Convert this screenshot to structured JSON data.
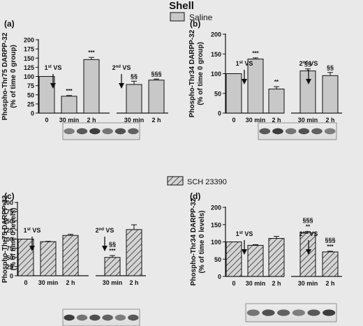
{
  "figure": {
    "title": "Shell",
    "legend_saline": "Saline",
    "legend_sch": "SCH 23390"
  },
  "chart_data": [
    {
      "id": "a",
      "panel_label": "(a)",
      "type": "bar",
      "treatment": "Saline",
      "ylabel_lines": [
        "Phospho-Thr75 DARPP-32",
        "(% of time 0 group)"
      ],
      "ylim": [
        0,
        200
      ],
      "yticks": [
        0,
        25,
        50,
        75,
        100,
        125,
        150,
        175,
        200
      ],
      "categories": [
        "0",
        "30 min",
        "2 h",
        "30 min",
        "2 h"
      ],
      "values": [
        100,
        46,
        146,
        78,
        90
      ],
      "errors": [
        0,
        2,
        6,
        9,
        3
      ],
      "marks": [
        [],
        [
          "***"
        ],
        [
          "***"
        ],
        [
          "§§"
        ],
        [
          "§§§"
        ]
      ],
      "annotations": [
        {
          "before_bar": 1,
          "ordinal": "1",
          "sup": "st",
          "label": "VS"
        },
        {
          "before_bar": 3,
          "ordinal": "2",
          "sup": "nd",
          "label": "VS"
        }
      ],
      "grid": false,
      "pattern": "solid"
    },
    {
      "id": "b",
      "panel_label": "(b)",
      "type": "bar",
      "treatment": "Saline",
      "ylabel_lines": [
        "Phospho-Thr34 DARPP-32",
        "(% of time 0 group)"
      ],
      "ylim": [
        0,
        200
      ],
      "yticks": [
        0,
        50,
        100,
        150,
        200
      ],
      "categories": [
        "0",
        "30 min",
        "2 h",
        "30 min",
        "2 h"
      ],
      "values": [
        100,
        137,
        61,
        107,
        95
      ],
      "errors": [
        0,
        3,
        6,
        5,
        8
      ],
      "marks": [
        [],
        [
          "***"
        ],
        [
          "**"
        ],
        [
          "§§"
        ],
        [
          "§§"
        ]
      ],
      "annotations": [
        {
          "before_bar": 1,
          "ordinal": "1",
          "sup": "st",
          "label": "VS"
        },
        {
          "before_bar": 3,
          "ordinal": "2",
          "sup": "nd",
          "label": "VS"
        }
      ],
      "grid": false,
      "pattern": "solid"
    },
    {
      "id": "c",
      "panel_label": "(c)",
      "type": "bar",
      "treatment": "SCH 23390",
      "ylabel_lines": [
        "Phospho-Thr75 DARPP-32",
        "(% of time 0 levels)"
      ],
      "ylim": [
        0,
        200
      ],
      "yticks": [
        0,
        25,
        50,
        75,
        100,
        125,
        150,
        175,
        200
      ],
      "categories": [
        "0",
        "30 min",
        "2 h",
        "30 min",
        "2 h"
      ],
      "values": [
        100,
        93,
        110,
        50,
        126
      ],
      "errors": [
        0,
        1,
        3,
        5,
        13
      ],
      "marks": [
        [],
        [],
        [],
        [
          "§§",
          "***"
        ],
        []
      ],
      "annotations": [
        {
          "before_bar": 1,
          "ordinal": "1",
          "sup": "st",
          "label": "VS"
        },
        {
          "before_bar": 3,
          "ordinal": "2",
          "sup": "nd",
          "label": "VS"
        }
      ],
      "grid": false,
      "pattern": "hatched"
    },
    {
      "id": "d",
      "panel_label": "(d)",
      "type": "bar",
      "treatment": "SCH 23390",
      "ylabel_lines": [
        "Phospho-Thr34 DARPP-32",
        "(% of time 0 levels)"
      ],
      "ylim": [
        0,
        200
      ],
      "yticks": [
        0,
        50,
        100,
        150,
        200
      ],
      "categories": [
        "0",
        "30 min",
        "2 h",
        "30 min",
        "2 h"
      ],
      "values": [
        100,
        90,
        110,
        126,
        71
      ],
      "errors": [
        0,
        2,
        6,
        4,
        2
      ],
      "marks": [
        [],
        [],
        [],
        [
          "§§§",
          "**"
        ],
        [
          "§§§",
          "***"
        ]
      ],
      "annotations": [
        {
          "before_bar": 1,
          "ordinal": "1",
          "sup": "st",
          "label": "VS"
        },
        {
          "before_bar": 3,
          "ordinal": "2",
          "sup": "nd",
          "label": "VS"
        }
      ],
      "grid": false,
      "pattern": "hatched"
    }
  ],
  "colors": {
    "background": "#e9e9e9",
    "bar_fill": "#c8c8c8",
    "hatch_fill": "#d4d4d4",
    "axis": "#111111",
    "blot_band": "#2a2a2a"
  }
}
